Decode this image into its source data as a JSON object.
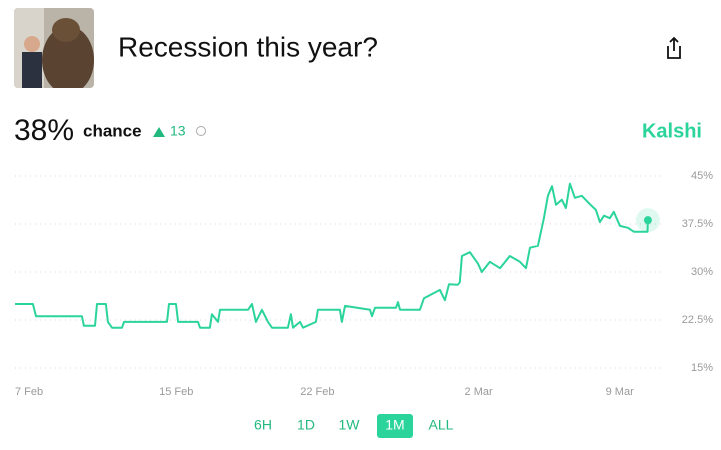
{
  "header": {
    "title": "Recession this year?"
  },
  "summary": {
    "probability": "38%",
    "label": "chance",
    "change": 13,
    "brand": "Kalshi"
  },
  "ranges": {
    "options": [
      "6H",
      "1D",
      "1W",
      "1M",
      "ALL"
    ],
    "selected": 3
  },
  "chart_data": {
    "type": "line",
    "color": "#2bd49b",
    "x": [
      0,
      0.89,
      1.04,
      3.32,
      3.42,
      3.97,
      4.07,
      4.51,
      4.61,
      4.81,
      5.31,
      5.41,
      7.54,
      7.64,
      7.99,
      8.09,
      9.08,
      9.18,
      9.67,
      9.77,
      10.07,
      10.17,
      11.56,
      11.76,
      11.95,
      12.25,
      12.55,
      12.75,
      13.54,
      13.69,
      13.79,
      14.14,
      14.29,
      14.93,
      15.03,
      16.12,
      16.22,
      16.37,
      17.61,
      17.71,
      17.86,
      18.9,
      19.0,
      19.1,
      20.09,
      20.29,
      21.08,
      21.33,
      21.53,
      21.97,
      22.07,
      22.17,
      22.57,
      22.97,
      23.16,
      23.56,
      24.06,
      24.55,
      25.05,
      25.35,
      25.55,
      25.94,
      26.24,
      26.44,
      26.64,
      26.84,
      27.13,
      27.33,
      27.53,
      27.78,
      28.12,
      28.52,
      28.82,
      29.02,
      29.22,
      29.51,
      29.71,
      30.01,
      30.41,
      30.7,
      31.38,
      31.4
    ],
    "values": [
      25,
      25,
      23.1,
      23.1,
      21.6,
      21.6,
      25,
      25,
      22.2,
      21.3,
      21.3,
      22.2,
      22.2,
      25,
      25,
      22.2,
      22.2,
      21.3,
      21.3,
      23.4,
      22.2,
      24.1,
      24.1,
      25,
      22.2,
      24.1,
      22.2,
      21.3,
      21.3,
      23.4,
      21.3,
      22.2,
      21.3,
      22.2,
      24.1,
      24.1,
      22.2,
      24.7,
      24.1,
      23.1,
      24.4,
      24.4,
      25.3,
      24.1,
      24.1,
      25.9,
      27.2,
      25.6,
      28.1,
      28,
      28.4,
      32.5,
      33.1,
      31.3,
      30,
      31.6,
      30.6,
      32.5,
      31.6,
      30.6,
      33.8,
      34.1,
      38.4,
      41.9,
      43.4,
      40.5,
      41.3,
      40,
      43.8,
      41.6,
      41.9,
      40.6,
      39.7,
      37.8,
      38.8,
      38.4,
      39.4,
      37.2,
      36.9,
      36.3,
      36.3,
      38.1
    ],
    "xlim": [
      0,
      32
    ],
    "xticks": [
      {
        "value": 0,
        "label": "7 Feb"
      },
      {
        "value": 8,
        "label": "15 Feb"
      },
      {
        "value": 15,
        "label": "22 Feb"
      },
      {
        "value": 23,
        "label": "2 Mar"
      },
      {
        "value": 30,
        "label": "9 Mar"
      }
    ],
    "ylim": [
      15,
      45
    ],
    "yticks": [
      {
        "value": 15,
        "label": "15%"
      },
      {
        "value": 22.5,
        "label": "22.5%"
      },
      {
        "value": 30,
        "label": "30%"
      },
      {
        "value": 37.5,
        "label": "37.5%"
      },
      {
        "value": 45,
        "label": "45%"
      }
    ],
    "grid": true
  }
}
